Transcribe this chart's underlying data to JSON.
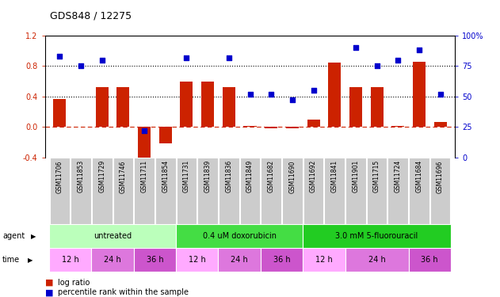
{
  "title": "GDS848 / 12275",
  "samples": [
    "GSM11706",
    "GSM11853",
    "GSM11729",
    "GSM11746",
    "GSM11711",
    "GSM11854",
    "GSM11731",
    "GSM11839",
    "GSM11836",
    "GSM11849",
    "GSM11682",
    "GSM11690",
    "GSM11692",
    "GSM11841",
    "GSM11901",
    "GSM11715",
    "GSM11724",
    "GSM11684",
    "GSM11696"
  ],
  "log_ratio": [
    0.37,
    0.0,
    0.52,
    0.52,
    -0.48,
    -0.22,
    0.6,
    0.6,
    0.52,
    0.01,
    -0.02,
    -0.02,
    0.1,
    0.85,
    0.52,
    0.52,
    0.01,
    0.86,
    0.07
  ],
  "percentile_rank": [
    83,
    75,
    80,
    null,
    22,
    null,
    82,
    null,
    82,
    52,
    52,
    47,
    55,
    null,
    90,
    75,
    80,
    88,
    52
  ],
  "ylim_left": [
    -0.4,
    1.2
  ],
  "ylim_right": [
    0,
    100
  ],
  "yticks_left": [
    -0.4,
    0.0,
    0.4,
    0.8,
    1.2
  ],
  "yticks_right": [
    0,
    25,
    50,
    75,
    100
  ],
  "hlines": [
    0.4,
    0.8
  ],
  "agents": [
    {
      "label": "untreated",
      "start": 0,
      "end": 6,
      "color": "#bbffbb"
    },
    {
      "label": "0.4 uM doxorubicin",
      "start": 6,
      "end": 12,
      "color": "#44dd44"
    },
    {
      "label": "3.0 mM 5-fluorouracil",
      "start": 12,
      "end": 19,
      "color": "#22cc22"
    }
  ],
  "times": [
    {
      "label": "12 h",
      "start": 0,
      "end": 2,
      "color": "#ffaaff"
    },
    {
      "label": "24 h",
      "start": 2,
      "end": 4,
      "color": "#dd77dd"
    },
    {
      "label": "36 h",
      "start": 4,
      "end": 6,
      "color": "#cc55cc"
    },
    {
      "label": "12 h",
      "start": 6,
      "end": 8,
      "color": "#ffaaff"
    },
    {
      "label": "24 h",
      "start": 8,
      "end": 10,
      "color": "#dd77dd"
    },
    {
      "label": "36 h",
      "start": 10,
      "end": 12,
      "color": "#cc55cc"
    },
    {
      "label": "12 h",
      "start": 12,
      "end": 14,
      "color": "#ffaaff"
    },
    {
      "label": "24 h",
      "start": 14,
      "end": 17,
      "color": "#dd77dd"
    },
    {
      "label": "36 h",
      "start": 17,
      "end": 19,
      "color": "#cc55cc"
    }
  ],
  "bar_color": "#cc2200",
  "scatter_color": "#0000cc",
  "zero_line_color": "#cc2200",
  "background_color": "#ffffff",
  "sample_box_color": "#cccccc",
  "sample_box_edge": "#ffffff"
}
